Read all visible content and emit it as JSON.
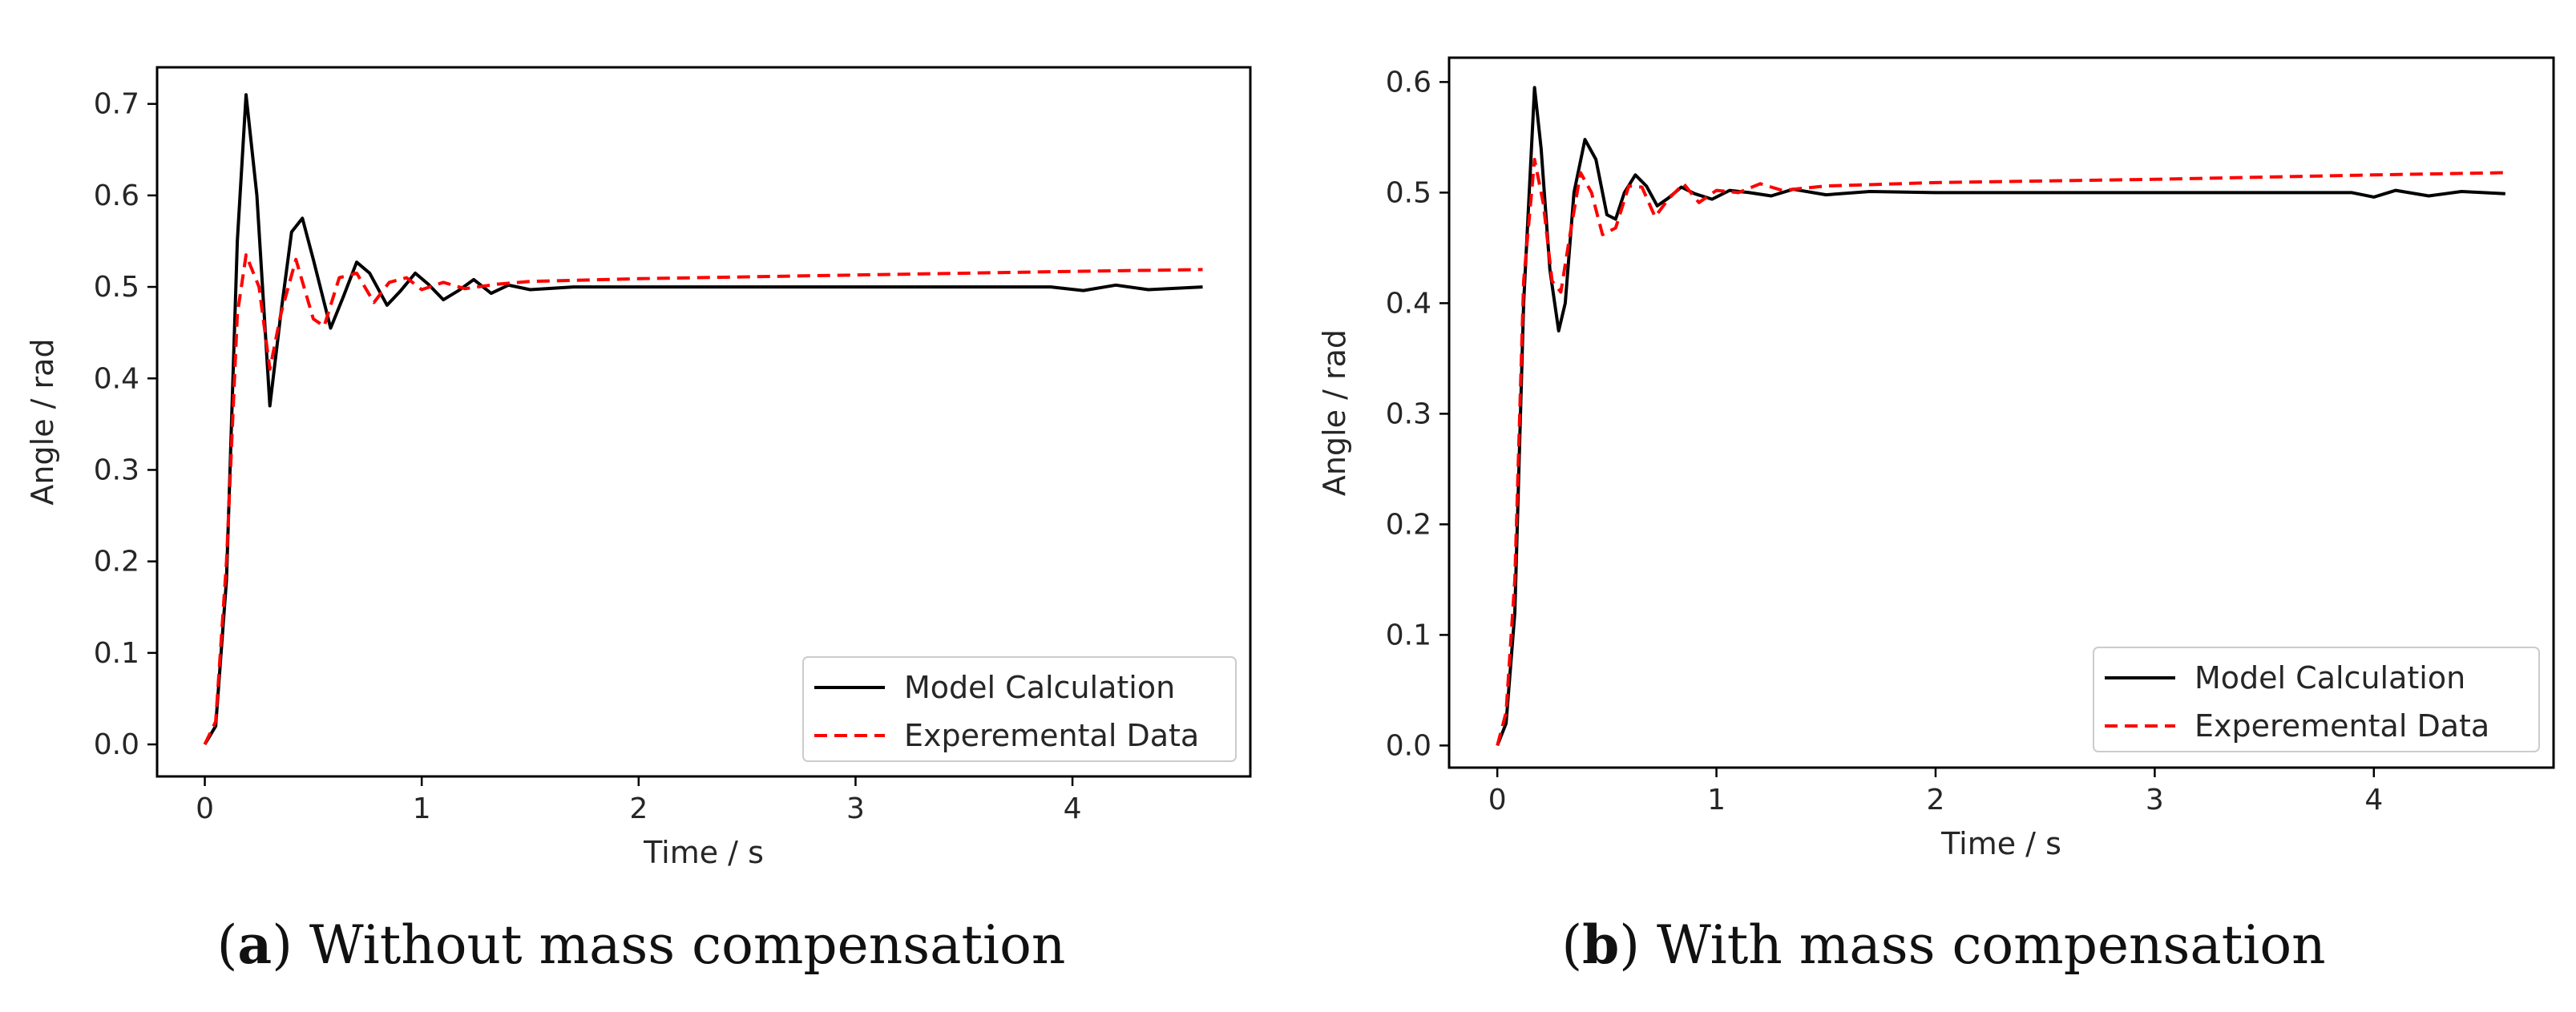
{
  "colors": {
    "model": "#000000",
    "experimental": "#ff0000",
    "axis": "#000000"
  },
  "chart_data": [
    {
      "id": "a",
      "type": "line",
      "xlabel": "Time / s",
      "ylabel": "Angle / rad",
      "xlim": [
        -0.22,
        4.82
      ],
      "ylim": [
        -0.035,
        0.74
      ],
      "xticks": [
        0,
        1,
        2,
        3,
        4
      ],
      "yticks": [
        0.0,
        0.1,
        0.2,
        0.3,
        0.4,
        0.5,
        0.6,
        0.7
      ],
      "legend_position": "bottom-right",
      "series": [
        {
          "name": "Model Calculation",
          "style": "solid",
          "x": [
            0,
            0.05,
            0.1,
            0.15,
            0.19,
            0.24,
            0.3,
            0.35,
            0.4,
            0.45,
            0.5,
            0.58,
            0.64,
            0.7,
            0.76,
            0.84,
            0.9,
            0.97,
            1.03,
            1.1,
            1.17,
            1.24,
            1.32,
            1.4,
            1.5,
            1.7,
            2.0,
            3.0,
            3.9,
            4.05,
            4.2,
            4.35,
            4.6
          ],
          "y": [
            0.0,
            0.02,
            0.18,
            0.55,
            0.71,
            0.6,
            0.37,
            0.47,
            0.56,
            0.575,
            0.53,
            0.455,
            0.49,
            0.527,
            0.515,
            0.48,
            0.495,
            0.515,
            0.503,
            0.486,
            0.496,
            0.508,
            0.493,
            0.502,
            0.497,
            0.5,
            0.5,
            0.5,
            0.5,
            0.496,
            0.502,
            0.497,
            0.5
          ]
        },
        {
          "name": "Experemental Data",
          "style": "dashed",
          "x": [
            0,
            0.05,
            0.1,
            0.15,
            0.19,
            0.25,
            0.3,
            0.35,
            0.42,
            0.5,
            0.55,
            0.62,
            0.7,
            0.78,
            0.85,
            0.93,
            1.0,
            1.1,
            1.2,
            1.35,
            1.5,
            2.0,
            3.0,
            4.0,
            4.6
          ],
          "y": [
            0.0,
            0.025,
            0.2,
            0.47,
            0.535,
            0.5,
            0.41,
            0.47,
            0.53,
            0.465,
            0.457,
            0.51,
            0.515,
            0.483,
            0.505,
            0.51,
            0.497,
            0.505,
            0.498,
            0.503,
            0.506,
            0.509,
            0.513,
            0.517,
            0.519
          ]
        }
      ],
      "caption": {
        "label": "(a)",
        "letter": "a",
        "text": "Without mass compensation"
      }
    },
    {
      "id": "b",
      "type": "line",
      "xlabel": "Time / s",
      "ylabel": "Angle / rad",
      "xlim": [
        -0.22,
        4.82
      ],
      "ylim": [
        -0.02,
        0.622
      ],
      "xticks": [
        0,
        1,
        2,
        3,
        4
      ],
      "yticks": [
        0.0,
        0.1,
        0.2,
        0.3,
        0.4,
        0.5,
        0.6
      ],
      "legend_position": "bottom-right",
      "series": [
        {
          "name": "Model Calculation",
          "style": "solid",
          "x": [
            0,
            0.04,
            0.08,
            0.12,
            0.17,
            0.2,
            0.24,
            0.28,
            0.31,
            0.35,
            0.4,
            0.45,
            0.5,
            0.54,
            0.58,
            0.63,
            0.68,
            0.73,
            0.78,
            0.84,
            0.9,
            0.98,
            1.06,
            1.15,
            1.25,
            1.35,
            1.5,
            1.7,
            2.0,
            3.0,
            3.9,
            4.0,
            4.1,
            4.25,
            4.4,
            4.6
          ],
          "y": [
            0.0,
            0.02,
            0.12,
            0.4,
            0.595,
            0.54,
            0.43,
            0.375,
            0.4,
            0.5,
            0.548,
            0.53,
            0.48,
            0.476,
            0.5,
            0.516,
            0.506,
            0.488,
            0.495,
            0.505,
            0.499,
            0.494,
            0.502,
            0.5,
            0.497,
            0.503,
            0.498,
            0.501,
            0.5,
            0.5,
            0.5,
            0.496,
            0.502,
            0.497,
            0.501,
            0.499
          ]
        },
        {
          "name": "Experemental Data",
          "style": "dashed",
          "x": [
            0,
            0.04,
            0.08,
            0.12,
            0.17,
            0.21,
            0.25,
            0.29,
            0.33,
            0.38,
            0.43,
            0.48,
            0.54,
            0.6,
            0.66,
            0.72,
            0.78,
            0.85,
            0.92,
            1.0,
            1.1,
            1.2,
            1.3,
            1.5,
            2.0,
            3.0,
            4.0,
            4.6
          ],
          "y": [
            0.0,
            0.03,
            0.15,
            0.42,
            0.53,
            0.49,
            0.42,
            0.41,
            0.46,
            0.518,
            0.5,
            0.462,
            0.468,
            0.506,
            0.505,
            0.478,
            0.494,
            0.508,
            0.491,
            0.502,
            0.5,
            0.508,
            0.502,
            0.506,
            0.509,
            0.512,
            0.516,
            0.518
          ]
        }
      ],
      "caption": {
        "label": "(b)",
        "letter": "b",
        "text": "With mass compensation"
      }
    }
  ]
}
